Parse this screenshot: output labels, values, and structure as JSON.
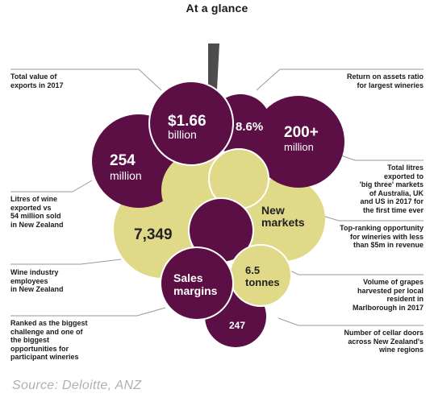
{
  "title": "At a glance",
  "colors": {
    "purple": "#5b0f45",
    "cream": "#e0da88",
    "stem": "#4d4d4d",
    "leader": "#9a9a9a"
  },
  "bubbles": {
    "exports": {
      "value": "$1.66",
      "unit": "billion"
    },
    "roa": {
      "value": "8.6%"
    },
    "litres_big_three": {
      "value": "200+",
      "unit": "million"
    },
    "litres_exported": {
      "value": "254",
      "unit": "million"
    },
    "top_opportunity": {
      "value": "New",
      "unit": "markets"
    },
    "employees": {
      "value": "7,349"
    },
    "challenge": {
      "value": "Sales",
      "unit": "margins"
    },
    "grapes": {
      "value": "6.5",
      "unit": "tonnes"
    },
    "cellar_doors": {
      "value": "247"
    }
  },
  "labels": {
    "exports": [
      "Total value of",
      "exports in 2017"
    ],
    "roa": [
      "Return on assets ratio",
      "for largest wineries"
    ],
    "big_three": [
      "Total litres",
      "exported to",
      "'big three' markets",
      "of Australia, UK",
      "and US in 2017 for",
      "the first time ever"
    ],
    "litres": [
      "Litres of wine",
      "exported vs",
      "54 million sold",
      "in New Zealand"
    ],
    "opportunity": [
      "Top-ranking opportunity",
      "for wineries with less",
      "than $5m in revenue"
    ],
    "employees": [
      "Wine industry",
      "employees",
      "in New Zealand"
    ],
    "grapes": [
      "Volume of grapes",
      "harvested per local",
      "resident in",
      "Marlborough in 2017"
    ],
    "challenge": [
      "Ranked as the biggest",
      "challenge and one of",
      "the biggest",
      "opportunities for",
      "participant wineries"
    ],
    "cellar": [
      "Number of cellar doors",
      "across New Zealand's",
      "wine regions"
    ]
  },
  "source": "Source: Deloitte, ANZ"
}
